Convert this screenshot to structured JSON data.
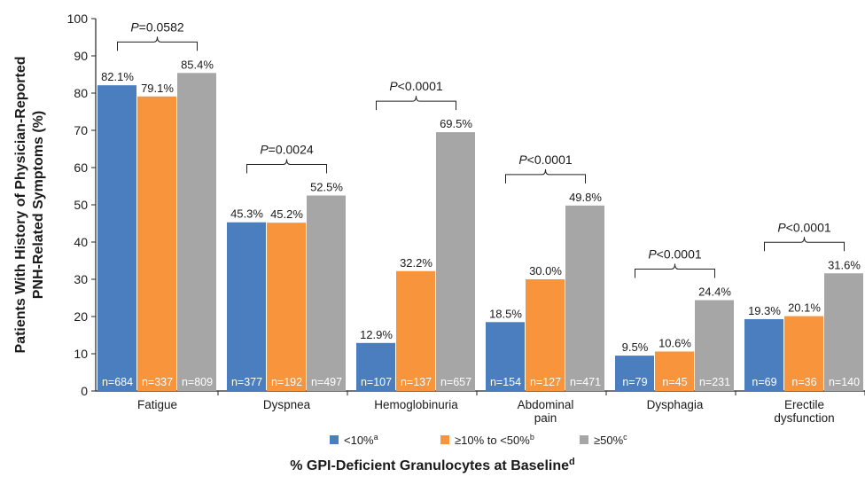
{
  "chart_data": {
    "type": "bar",
    "title": "",
    "ylabel": [
      "Patients With History of Physician-Reported",
      "PNH-Related Symptoms (%)"
    ],
    "xlabel": "% GPI-Deficient Granulocytes at Baseline",
    "xlabel_sup": "d",
    "ylim": [
      0,
      100
    ],
    "yticks": [
      0,
      10,
      20,
      30,
      40,
      50,
      60,
      70,
      80,
      90,
      100
    ],
    "grid": false,
    "legend_position": "bottom",
    "categories": [
      [
        "Fatigue"
      ],
      [
        "Dyspnea"
      ],
      [
        "Hemoglobinuria"
      ],
      [
        "Abdominal",
        "pain"
      ],
      [
        "Dysphagia"
      ],
      [
        "Erectile",
        "dysfunction"
      ]
    ],
    "series": [
      {
        "name": "<10%",
        "sup": "a",
        "color": "#4a7ebf",
        "values": [
          82.1,
          45.3,
          12.9,
          18.5,
          9.5,
          19.3
        ],
        "labels": [
          "82.1%",
          "45.3%",
          "12.9%",
          "18.5%",
          "9.5%",
          "19.3%"
        ],
        "n": [
          "n=684",
          "n=377",
          "n=107",
          "n=154",
          "n=79",
          "n=69"
        ]
      },
      {
        "name": "≥10% to <50%",
        "sup": "b",
        "color": "#f7943c",
        "values": [
          79.1,
          45.2,
          32.2,
          30.0,
          10.6,
          20.1
        ],
        "labels": [
          "79.1%",
          "45.2%",
          "32.2%",
          "30.0%",
          "10.6%",
          "20.1%"
        ],
        "n": [
          "n=337",
          "n=192",
          "n=137",
          "n=127",
          "n=45",
          "n=36"
        ]
      },
      {
        "name": "≥50%",
        "sup": "c",
        "color": "#a6a6a6",
        "values": [
          85.4,
          52.5,
          69.5,
          49.8,
          24.4,
          31.6
        ],
        "labels": [
          "85.4%",
          "52.5%",
          "69.5%",
          "49.8%",
          "24.4%",
          "31.6%"
        ],
        "n": [
          "n=809",
          "n=497",
          "n=657",
          "n=471",
          "n=231",
          "n=140"
        ]
      }
    ],
    "pvalues": [
      {
        "prefix": "P",
        "rest": "=0.0582"
      },
      {
        "prefix": "P",
        "rest": "=0.0024"
      },
      {
        "prefix": "P",
        "rest": "<0.0001"
      },
      {
        "prefix": "P",
        "rest": "<0.0001"
      },
      {
        "prefix": "P",
        "rest": "<0.0001"
      },
      {
        "prefix": "P",
        "rest": "<0.0001"
      }
    ]
  }
}
